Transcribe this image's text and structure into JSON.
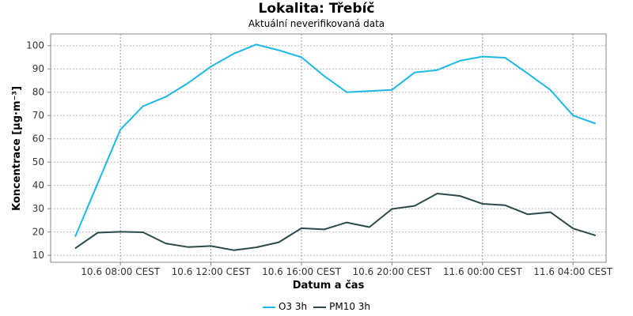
{
  "chart_data": {
    "type": "line",
    "title": "Lokalita: Třebíč",
    "subtitle": "Aktuální neverifikovaná data",
    "xlabel": "Datum a čas",
    "ylabel": "Koncentrace [µg·m⁻³]",
    "ylim": [
      7,
      105
    ],
    "yticks": [
      10,
      20,
      30,
      40,
      50,
      60,
      70,
      80,
      90,
      100
    ],
    "x": [
      "10.6 06:00",
      "10.6 07:00",
      "10.6 08:00",
      "10.6 09:00",
      "10.6 10:00",
      "10.6 11:00",
      "10.6 12:00",
      "10.6 13:00",
      "10.6 14:00",
      "10.6 15:00",
      "10.6 16:00",
      "10.6 17:00",
      "10.6 18:00",
      "10.6 19:00",
      "10.6 20:00",
      "10.6 21:00",
      "10.6 22:00",
      "10.6 23:00",
      "11.6 00:00",
      "11.6 01:00",
      "11.6 02:00",
      "11.6 03:00",
      "11.6 04:00",
      "11.6 05:00"
    ],
    "xticks": [
      {
        "x": "10.6 08:00",
        "label": "10.6 08:00 CEST"
      },
      {
        "x": "10.6 12:00",
        "label": "10.6 12:00 CEST"
      },
      {
        "x": "10.6 16:00",
        "label": "10.6 16:00 CEST"
      },
      {
        "x": "10.6 20:00",
        "label": "10.6 20:00 CEST"
      },
      {
        "x": "11.6 00:00",
        "label": "11.6 00:00 CEST"
      },
      {
        "x": "11.6 04:00",
        "label": "11.6 04:00 CEST"
      }
    ],
    "grid": true,
    "legend_position": "bottom-center",
    "series": [
      {
        "name": "O3 3h",
        "color": "#1cb8e8",
        "values": [
          18,
          41,
          64,
          74,
          78,
          84,
          91,
          96.5,
          100.5,
          98,
          95,
          87,
          80,
          80.5,
          81,
          88.5,
          89.5,
          93.5,
          95.3,
          94.8,
          88,
          81,
          70,
          66.5
        ]
      },
      {
        "name": "PM10 3h",
        "color": "#2b4a4a",
        "values": [
          13,
          19.7,
          20.1,
          19.9,
          15.1,
          13.5,
          14,
          12.2,
          13.4,
          15.6,
          21.6,
          21.1,
          24.1,
          22.1,
          29.9,
          31.2,
          36.5,
          35.5,
          32.1,
          31.5,
          27.6,
          28.5,
          21.5,
          18.5
        ]
      }
    ]
  }
}
